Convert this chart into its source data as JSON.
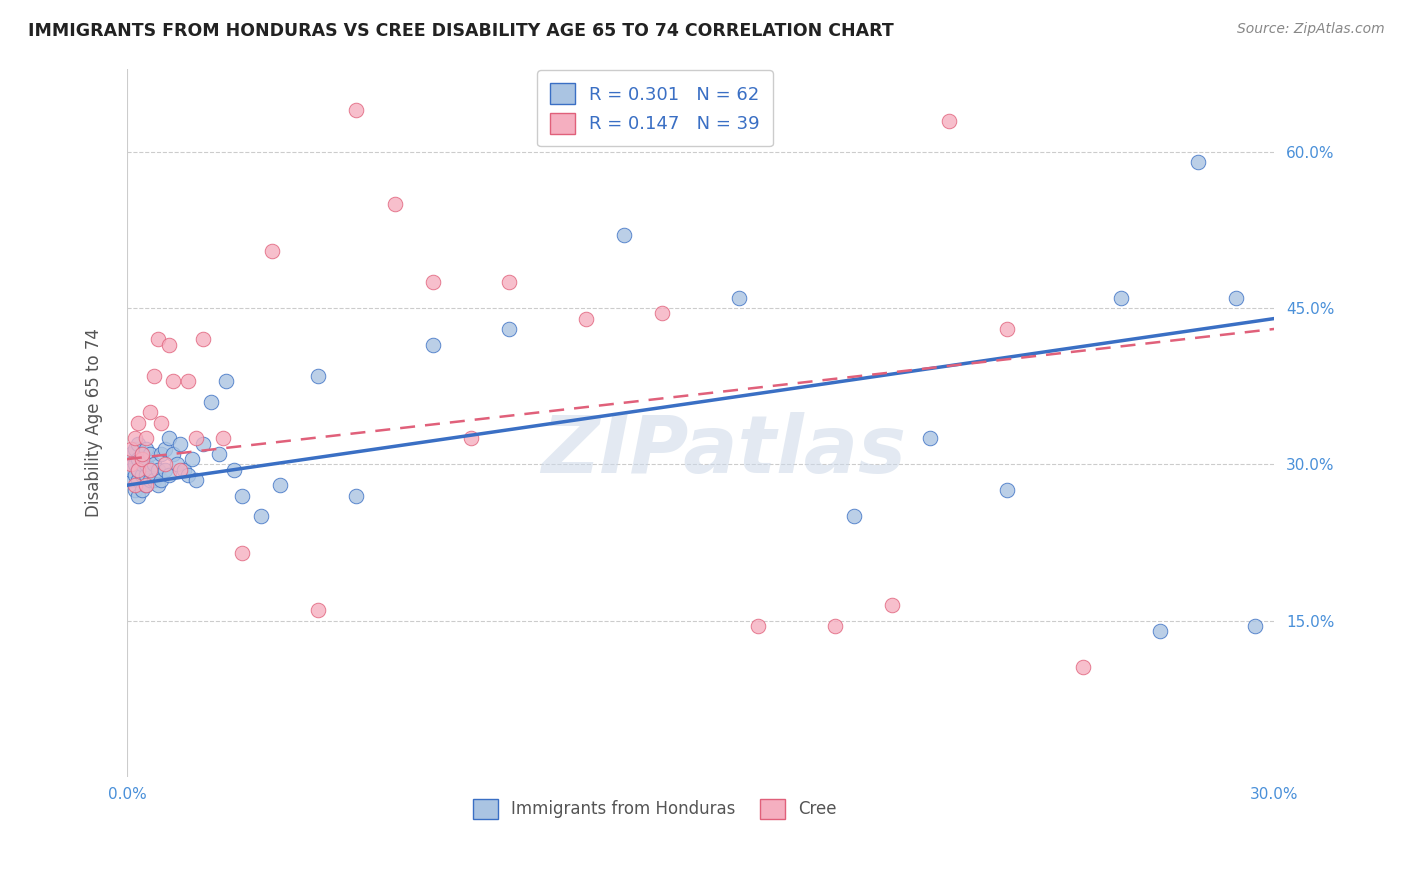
{
  "title": "IMMIGRANTS FROM HONDURAS VS CREE DISABILITY AGE 65 TO 74 CORRELATION CHART",
  "source": "Source: ZipAtlas.com",
  "ylabel": "Disability Age 65 to 74",
  "legend_label_1": "Immigrants from Honduras",
  "legend_label_2": "Cree",
  "R1": 0.301,
  "N1": 62,
  "R2": 0.147,
  "N2": 39,
  "color1": "#aac4e2",
  "color2": "#f5afc0",
  "trendline_color1": "#3a6fc4",
  "trendline_color2": "#e0607a",
  "tick_color": "#4a90d9",
  "xlim": [
    0.0,
    0.3
  ],
  "ylim": [
    0.0,
    0.68
  ],
  "xtick_labels": [
    "0.0%",
    "",
    "",
    "",
    "",
    "",
    "30.0%"
  ],
  "xtick_values": [
    0.0,
    0.05,
    0.1,
    0.15,
    0.2,
    0.25,
    0.3
  ],
  "ytick_labels": [
    "15.0%",
    "30.0%",
    "45.0%",
    "60.0%"
  ],
  "ytick_values": [
    0.15,
    0.3,
    0.45,
    0.6
  ],
  "watermark": "ZIPatlas",
  "blue_x": [
    0.001,
    0.001,
    0.001,
    0.002,
    0.002,
    0.002,
    0.002,
    0.003,
    0.003,
    0.003,
    0.003,
    0.003,
    0.004,
    0.004,
    0.004,
    0.004,
    0.005,
    0.005,
    0.005,
    0.005,
    0.006,
    0.006,
    0.006,
    0.007,
    0.007,
    0.008,
    0.008,
    0.009,
    0.009,
    0.01,
    0.01,
    0.011,
    0.011,
    0.012,
    0.013,
    0.014,
    0.015,
    0.016,
    0.017,
    0.018,
    0.02,
    0.022,
    0.024,
    0.026,
    0.028,
    0.03,
    0.035,
    0.04,
    0.05,
    0.06,
    0.08,
    0.1,
    0.13,
    0.16,
    0.19,
    0.21,
    0.23,
    0.26,
    0.27,
    0.28,
    0.29,
    0.295
  ],
  "blue_y": [
    0.285,
    0.295,
    0.31,
    0.275,
    0.29,
    0.3,
    0.315,
    0.27,
    0.285,
    0.295,
    0.305,
    0.32,
    0.275,
    0.29,
    0.3,
    0.31,
    0.28,
    0.29,
    0.3,
    0.315,
    0.285,
    0.295,
    0.31,
    0.285,
    0.3,
    0.28,
    0.295,
    0.285,
    0.31,
    0.295,
    0.315,
    0.29,
    0.325,
    0.31,
    0.3,
    0.32,
    0.295,
    0.29,
    0.305,
    0.285,
    0.32,
    0.36,
    0.31,
    0.38,
    0.295,
    0.27,
    0.25,
    0.28,
    0.385,
    0.27,
    0.415,
    0.43,
    0.52,
    0.46,
    0.25,
    0.325,
    0.275,
    0.46,
    0.14,
    0.59,
    0.46,
    0.145
  ],
  "pink_x": [
    0.001,
    0.001,
    0.002,
    0.002,
    0.003,
    0.003,
    0.004,
    0.004,
    0.005,
    0.005,
    0.006,
    0.006,
    0.007,
    0.008,
    0.009,
    0.01,
    0.011,
    0.012,
    0.014,
    0.016,
    0.018,
    0.02,
    0.025,
    0.03,
    0.038,
    0.05,
    0.06,
    0.07,
    0.08,
    0.09,
    0.1,
    0.12,
    0.14,
    0.165,
    0.185,
    0.2,
    0.215,
    0.23,
    0.25
  ],
  "pink_y": [
    0.3,
    0.315,
    0.28,
    0.325,
    0.295,
    0.34,
    0.305,
    0.31,
    0.28,
    0.325,
    0.295,
    0.35,
    0.385,
    0.42,
    0.34,
    0.3,
    0.415,
    0.38,
    0.295,
    0.38,
    0.325,
    0.42,
    0.325,
    0.215,
    0.505,
    0.16,
    0.64,
    0.55,
    0.475,
    0.325,
    0.475,
    0.44,
    0.445,
    0.145,
    0.145,
    0.165,
    0.63,
    0.43,
    0.105
  ],
  "trendline_blue_x0": 0.0,
  "trendline_blue_y0": 0.28,
  "trendline_blue_x1": 0.3,
  "trendline_blue_y1": 0.44,
  "trendline_pink_x0": 0.0,
  "trendline_pink_y0": 0.305,
  "trendline_pink_x1": 0.3,
  "trendline_pink_y1": 0.43
}
